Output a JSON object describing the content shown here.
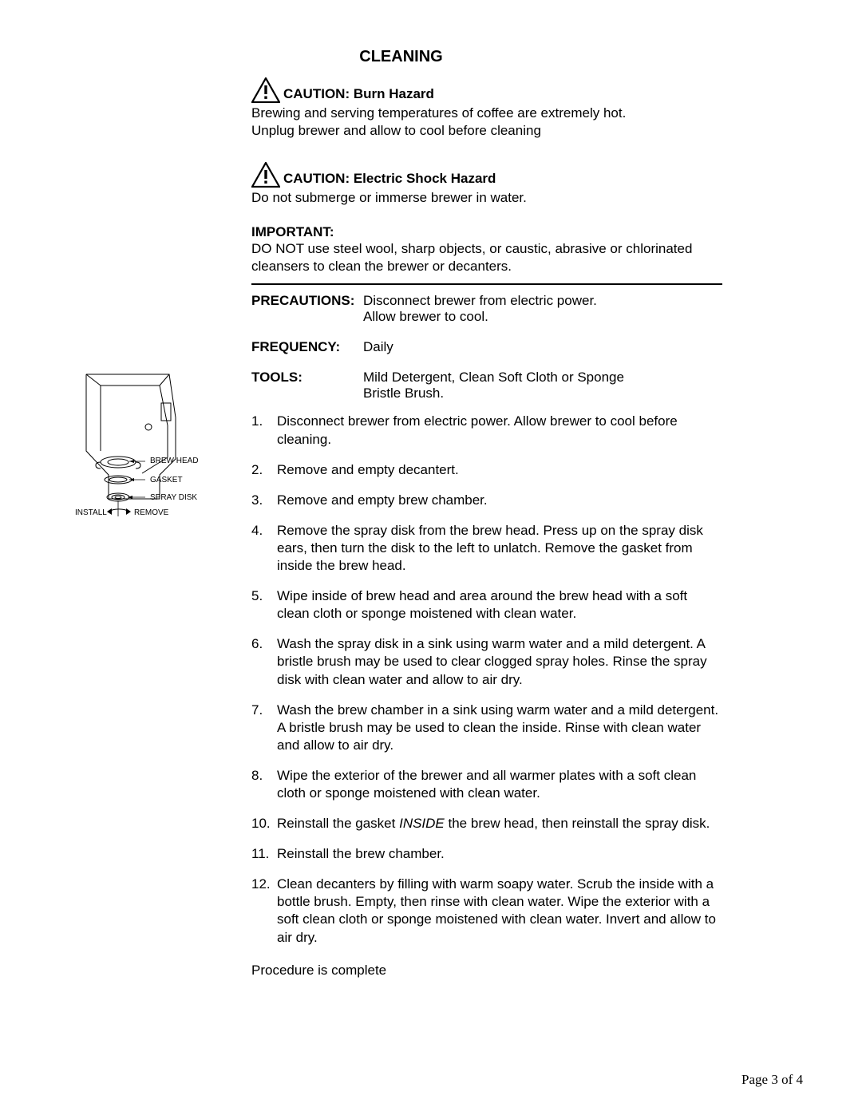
{
  "title": "CLEANING",
  "caution1": {
    "label": "CAUTION: Burn Hazard",
    "line1": "Brewing and serving temperatures of coffee are extremely hot.",
    "line2": "Unplug brewer and allow to cool before cleaning"
  },
  "caution2": {
    "label": "CAUTION: Electric Shock Hazard",
    "line1": "Do not submerge or immerse brewer in water."
  },
  "important": {
    "label": "IMPORTANT:",
    "text": "DO NOT use steel wool, sharp objects, or caustic, abrasive or chlorinated cleansers to clean the brewer or decanters."
  },
  "precautions": {
    "key": "PRECAUTIONS:",
    "line1": "Disconnect brewer from electric power.",
    "line2": "Allow brewer to cool."
  },
  "frequency": {
    "key": "FREQUENCY:",
    "val": "Daily"
  },
  "tools": {
    "key": "TOOLS:",
    "line1": "Mild Detergent, Clean Soft Cloth or Sponge",
    "line2": "Bristle Brush."
  },
  "steps": [
    {
      "n": "1.",
      "t": "Disconnect brewer from electric power. Allow brewer to cool before cleaning."
    },
    {
      "n": "2.",
      "t": "Remove and empty decantert."
    },
    {
      "n": "3.",
      "t": "Remove and empty brew chamber."
    },
    {
      "n": "4.",
      "t": "Remove the spray disk from the brew head. Press up on the spray disk ears, then turn the disk to the left to unlatch.  Remove the gasket from inside the brew head."
    },
    {
      "n": "5.",
      "t": "Wipe inside of brew head and area around the brew head with a soft clean cloth or sponge moistened with clean water."
    },
    {
      "n": "6.",
      "t": "Wash the spray disk in a sink using warm water and a mild detergent.  A bristle brush may be used to clear clogged spray holes.  Rinse the spray disk with clean water and allow to air dry."
    },
    {
      "n": "7.",
      "t": "Wash the brew chamber in a sink using warm water and a mild detergent.  A bristle brush may be used to clean the inside. Rinse with clean water and allow to air dry."
    },
    {
      "n": "8.",
      "t": "Wipe the exterior of the brewer and all warmer plates with a soft clean cloth or sponge moistened with clean water."
    },
    {
      "n": "10.",
      "t": "Reinstall the gasket INSIDE the brew head, then reinstall the spray disk.",
      "italic": "INSIDE"
    },
    {
      "n": "11.",
      "t": "Reinstall the brew chamber."
    },
    {
      "n": "12.",
      "t": "Clean decanters by filling with warm soapy water.  Scrub the inside with a bottle brush.  Empty, then rinse with clean water.  Wipe the exterior with a soft clean cloth or sponge moistened with clean water.  Invert and allow to air dry."
    }
  ],
  "complete": "Procedure is complete",
  "diagram": {
    "labels": {
      "brewhead": "BREW HEAD",
      "gasket": "GASKET",
      "spraydisk": "SPRAY DISK",
      "install": "INSTALL",
      "remove": "REMOVE"
    }
  },
  "footer": "Page 3 of 4"
}
